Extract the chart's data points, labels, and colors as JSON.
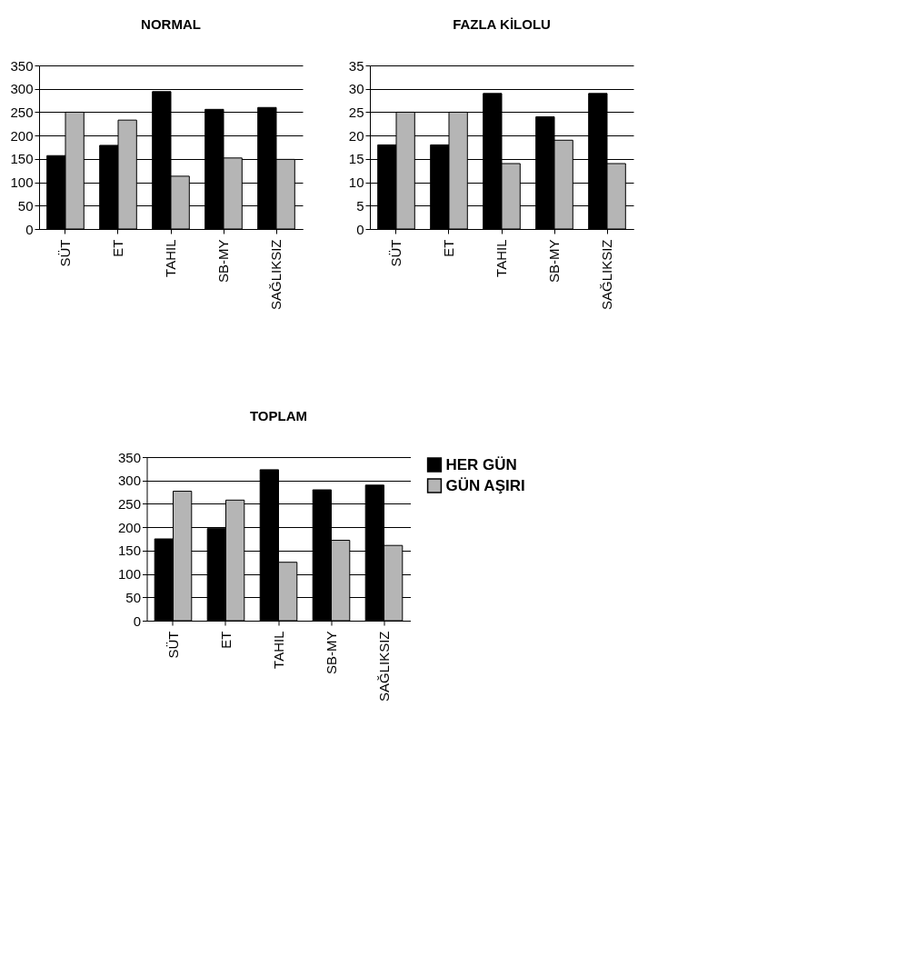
{
  "chart_data": [
    {
      "type": "bar",
      "title": "NORMAL",
      "categories": [
        "SÜT",
        "ET",
        "TAHIL",
        "SB-MY",
        "SAĞLIKSIZ"
      ],
      "ylim": [
        0,
        350
      ],
      "yticks": [
        0,
        50,
        100,
        150,
        200,
        250,
        300,
        350
      ],
      "grid": "y",
      "series": [
        {
          "color": "#000000",
          "values": [
            157,
            179,
            294,
            256,
            260
          ]
        },
        {
          "color": "#b5b5b5",
          "values": [
            250,
            233,
            113,
            152,
            149
          ]
        }
      ]
    },
    {
      "type": "bar",
      "title": "FAZLA KİLOLU",
      "categories": [
        "SÜT",
        "ET",
        "TAHIL",
        "SB-MY",
        "SAĞLIKSIZ"
      ],
      "ylim": [
        0,
        35
      ],
      "yticks": [
        0,
        5,
        10,
        15,
        20,
        25,
        30,
        35
      ],
      "grid": "y",
      "series": [
        {
          "color": "#000000",
          "values": [
            18,
            18,
            29,
            24,
            29
          ]
        },
        {
          "color": "#b5b5b5",
          "values": [
            25,
            25,
            14,
            19,
            14
          ]
        }
      ]
    },
    {
      "type": "bar",
      "title": "TOPLAM",
      "categories": [
        "SÜT",
        "ET",
        "TAHIL",
        "SB-MY",
        "SAĞLIKSIZ"
      ],
      "ylim": [
        0,
        350
      ],
      "yticks": [
        0,
        50,
        100,
        150,
        200,
        250,
        300,
        350
      ],
      "grid": "y",
      "legend": "right",
      "series": [
        {
          "name": "HER GÜN",
          "color": "#000000",
          "values": [
            175,
            197,
            323,
            280,
            290
          ]
        },
        {
          "name": "GÜN AŞIRI",
          "color": "#b5b5b5",
          "values": [
            277,
            258,
            125,
            172,
            161
          ]
        }
      ]
    }
  ]
}
